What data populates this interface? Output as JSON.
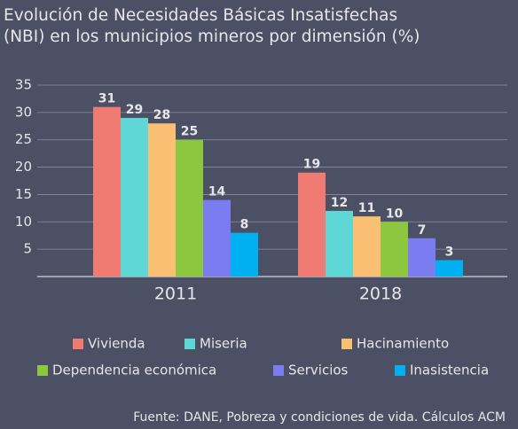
{
  "chart_data": {
    "type": "bar",
    "title": [
      "Evolución de Necesidades Básicas Insatisfechas",
      "(NBI) en los municipios mineros por dimensión (%)"
    ],
    "categories": [
      "2011",
      "2018"
    ],
    "series": [
      {
        "name": "Vivienda",
        "color": "#f07b72",
        "values": [
          31,
          19
        ]
      },
      {
        "name": "Miseria",
        "color": "#5fd7d7",
        "values": [
          29,
          12
        ]
      },
      {
        "name": "Hacinamiento",
        "color": "#f9bf73",
        "values": [
          28,
          11
        ]
      },
      {
        "name": "Dependencia económica",
        "color": "#8dc63f",
        "values": [
          25,
          10
        ]
      },
      {
        "name": "Servicios",
        "color": "#7b7cf0",
        "values": [
          14,
          7
        ]
      },
      {
        "name": "Inasistencia",
        "color": "#00b0f0",
        "values": [
          8,
          3
        ]
      }
    ],
    "ylim": [
      0,
      35
    ],
    "yticks": [
      5,
      10,
      15,
      20,
      25,
      30,
      35
    ],
    "grid": true,
    "source": "Fuente: DANE, Pobreza y condiciones de vida. Cálculos ACM"
  }
}
